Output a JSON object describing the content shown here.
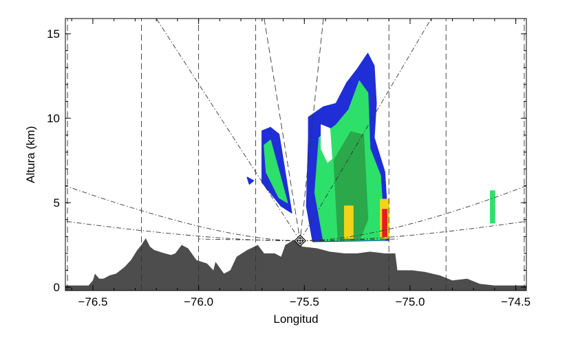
{
  "chart_data": {
    "type": "area",
    "title": "",
    "xlabel": "Longitud",
    "ylabel": "Altura (km)",
    "xlim": [
      -76.63,
      -74.45
    ],
    "ylim": [
      -0.2,
      15.9
    ],
    "xticks": [
      -76.5,
      -76.0,
      -75.5,
      -75.0,
      -74.5
    ],
    "xtick_labels": [
      "−76.5",
      "−76.0",
      "−75.5",
      "−75.0",
      "−74.5"
    ],
    "yticks": [
      0,
      5,
      10,
      15
    ],
    "ytick_labels": [
      "0",
      "5",
      "10",
      "15"
    ],
    "grid": false,
    "radar_location": {
      "lon": -75.52,
      "alt": 2.75
    },
    "terrain": {
      "color": "#4d4d4d",
      "lon": [
        -76.63,
        -76.52,
        -76.5,
        -76.49,
        -76.47,
        -76.45,
        -76.42,
        -76.39,
        -76.35,
        -76.32,
        -76.29,
        -76.27,
        -76.25,
        -76.23,
        -76.21,
        -76.16,
        -76.13,
        -76.11,
        -76.08,
        -76.05,
        -76.01,
        -75.96,
        -75.93,
        -75.92,
        -75.88,
        -75.85,
        -75.82,
        -75.77,
        -75.72,
        -75.69,
        -75.64,
        -75.61,
        -75.59,
        -75.55,
        -75.51,
        -75.44,
        -75.38,
        -75.31,
        -75.25,
        -75.19,
        -75.12,
        -75.07,
        -75.06,
        -74.99,
        -74.93,
        -74.86,
        -74.8,
        -74.73,
        -74.67,
        -74.6,
        -74.45
      ],
      "alt": [
        0.1,
        0.1,
        0.4,
        0.8,
        0.5,
        0.5,
        0.7,
        0.8,
        1.2,
        1.6,
        2.2,
        2.5,
        2.9,
        2.4,
        2.2,
        2.0,
        1.9,
        2.0,
        2.5,
        2.3,
        1.6,
        1.4,
        1.0,
        1.5,
        0.8,
        1.0,
        1.8,
        2.2,
        2.5,
        2.0,
        2.0,
        1.8,
        2.5,
        2.8,
        2.4,
        2.3,
        2.1,
        2.0,
        2.0,
        2.1,
        2.0,
        2.0,
        1.0,
        1.0,
        0.9,
        0.7,
        0.4,
        0.5,
        0.2,
        0.1,
        0.1
      ]
    },
    "echoes": [
      {
        "level": "weak",
        "color": "#1f2ed6",
        "lon": [
          -75.7,
          -75.66,
          -75.62,
          -75.56,
          -75.61,
          -75.7
        ],
        "alt": [
          9.25,
          9.45,
          9.05,
          4.4,
          4.8,
          6.2
        ]
      },
      {
        "level": "moderate",
        "color": "#2de06a",
        "lon": [
          -75.69,
          -75.66,
          -75.58,
          -75.62,
          -75.68
        ],
        "alt": [
          8.4,
          8.7,
          5.0,
          5.3,
          6.8
        ]
      },
      {
        "level": "weak",
        "color": "#1f2ed6",
        "lon": [
          -75.77,
          -75.74,
          -75.76
        ],
        "alt": [
          6.5,
          6.3,
          6.1
        ]
      },
      {
        "level": "weak",
        "color": "#1f2ed6",
        "lon": [
          -75.48,
          -75.41,
          -75.35,
          -75.3,
          -75.25,
          -75.2,
          -75.17,
          -75.16,
          -75.17,
          -75.12,
          -75.1,
          -75.46,
          -75.49,
          -75.48
        ],
        "alt": [
          10.06,
          10.67,
          10.87,
          12.09,
          12.9,
          13.83,
          13.1,
          10.87,
          8.85,
          6.82,
          2.77,
          2.7,
          4.8,
          8.85
        ]
      },
      {
        "level": "moderate",
        "color": "#2de06a",
        "lon": [
          -75.43,
          -75.35,
          -75.29,
          -75.24,
          -75.2,
          -75.19,
          -75.14,
          -75.12,
          -75.41,
          -75.45
        ],
        "alt": [
          8.85,
          9.6,
          10.5,
          12.2,
          11.5,
          8.2,
          6.6,
          2.8,
          2.75,
          5.6
        ]
      },
      {
        "level": "moderate-high",
        "color": "#2aa84a",
        "lon": [
          -75.36,
          -75.28,
          -75.22,
          -75.2,
          -75.24,
          -75.34
        ],
        "alt": [
          7.5,
          9.2,
          9.0,
          4.0,
          2.8,
          2.8
        ]
      },
      {
        "level": "strong",
        "color": "#f2d41a",
        "lon": [
          -75.31,
          -75.27,
          -75.27,
          -75.31
        ],
        "alt": [
          4.8,
          4.8,
          2.9,
          2.9
        ]
      },
      {
        "level": "strong",
        "color": "#f2d41a",
        "lon": [
          -75.14,
          -75.1,
          -75.1,
          -75.14
        ],
        "alt": [
          5.2,
          5.2,
          2.9,
          2.9
        ]
      },
      {
        "level": "very-strong",
        "color": "#e81e1e",
        "lon": [
          -75.13,
          -75.11,
          -75.11,
          -75.13
        ],
        "alt": [
          4.6,
          4.6,
          3.0,
          3.0
        ]
      },
      {
        "level": "moderate",
        "color": "#2de06a",
        "lon": [
          -74.62,
          -74.6,
          -74.6,
          -74.62
        ],
        "alt": [
          5.7,
          5.7,
          3.8,
          3.8
        ]
      },
      {
        "level": "hole",
        "color": "#ffffff",
        "lon": [
          -75.42,
          -75.38,
          -75.37,
          -75.39,
          -75.42
        ],
        "alt": [
          9.6,
          9.4,
          7.6,
          7.4,
          8.2
        ]
      }
    ],
    "beam_lines": [
      {
        "lon": [
          -75.52,
          -76.2
        ],
        "alt": [
          2.75,
          15.9
        ]
      },
      {
        "lon": [
          -75.52,
          -74.9
        ],
        "alt": [
          2.75,
          15.9
        ]
      },
      {
        "lon": [
          -75.52,
          -75.98,
          -76.63
        ],
        "alt": [
          2.75,
          3.55,
          6.0
        ]
      },
      {
        "lon": [
          -75.52,
          -75.98,
          -76.63
        ],
        "alt": [
          2.75,
          3.0,
          3.9
        ]
      },
      {
        "lon": [
          -75.52,
          -75.06,
          -74.45
        ],
        "alt": [
          2.75,
          3.55,
          6.0
        ]
      },
      {
        "lon": [
          -75.52,
          -75.06,
          -74.45
        ],
        "alt": [
          2.75,
          3.0,
          3.9
        ]
      },
      {
        "lon": [
          -75.52,
          -76.0
        ],
        "alt": [
          2.75,
          2.85
        ]
      },
      {
        "lon": [
          -75.52,
          -75.05
        ],
        "alt": [
          2.75,
          2.85
        ]
      }
    ],
    "range_lines": [
      {
        "lon": [
          -76.62,
          -76.62
        ],
        "alt": [
          -0.2,
          15.9
        ]
      },
      {
        "lon": [
          -76.27,
          -76.27
        ],
        "alt": [
          -0.2,
          15.9
        ]
      },
      {
        "lon": [
          -76.0,
          -76.0
        ],
        "alt": [
          -0.2,
          15.9
        ]
      },
      {
        "lon": [
          -75.73,
          -75.73
        ],
        "alt": [
          -0.2,
          15.9
        ]
      },
      {
        "lon": [
          -75.1,
          -75.1
        ],
        "alt": [
          -0.2,
          15.9
        ]
      },
      {
        "lon": [
          -74.83,
          -74.83
        ],
        "alt": [
          -0.2,
          15.9
        ]
      },
      {
        "lon": [
          -74.46,
          -74.46
        ],
        "alt": [
          -0.2,
          15.9
        ]
      },
      {
        "lon": [
          -75.69,
          -75.52
        ],
        "alt": [
          15.9,
          2.75
        ]
      },
      {
        "lon": [
          -75.41,
          -75.52
        ],
        "alt": [
          15.9,
          2.75
        ]
      }
    ]
  }
}
